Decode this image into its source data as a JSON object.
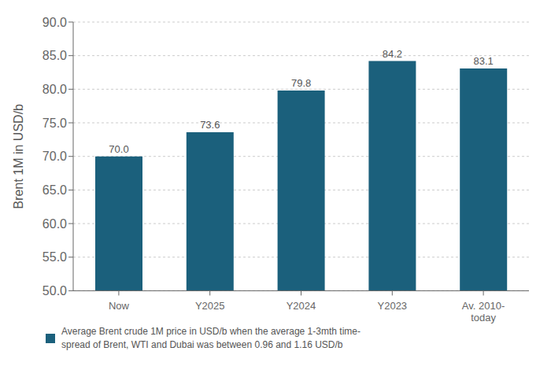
{
  "chart_data": {
    "type": "bar",
    "categories": [
      "Now",
      "Y2025",
      "Y2024",
      "Y2023",
      "Av. 2010-\ntoday"
    ],
    "series": [
      {
        "name": "Average Brent crude 1M price in USD/b when the average 1-3mth time-\nspread of Brent, WTI and Dubai was between 0.96 and 1.16 USD/b",
        "color": "#1b607c",
        "values": [
          70.0,
          73.6,
          79.8,
          84.2,
          83.1
        ],
        "value_labels": [
          "70.0",
          "73.6",
          "79.8",
          "84.2",
          "83.1"
        ]
      }
    ],
    "ylabel": "Brent 1M in USD/b",
    "ylim": [
      50.0,
      90.0
    ],
    "yticks": [
      {
        "value": 50.0,
        "label": "50.0"
      },
      {
        "value": 55.0,
        "label": "55.0"
      },
      {
        "value": 60.0,
        "label": "60.0"
      },
      {
        "value": 65.0,
        "label": "65.0"
      },
      {
        "value": 70.0,
        "label": "70.0"
      },
      {
        "value": 75.0,
        "label": "75.0"
      },
      {
        "value": 80.0,
        "label": "80.0"
      },
      {
        "value": 85.0,
        "label": "85.0"
      },
      {
        "value": 90.0,
        "label": "90.0"
      }
    ],
    "grid": true,
    "data_labels": true,
    "legend": "bottom"
  }
}
